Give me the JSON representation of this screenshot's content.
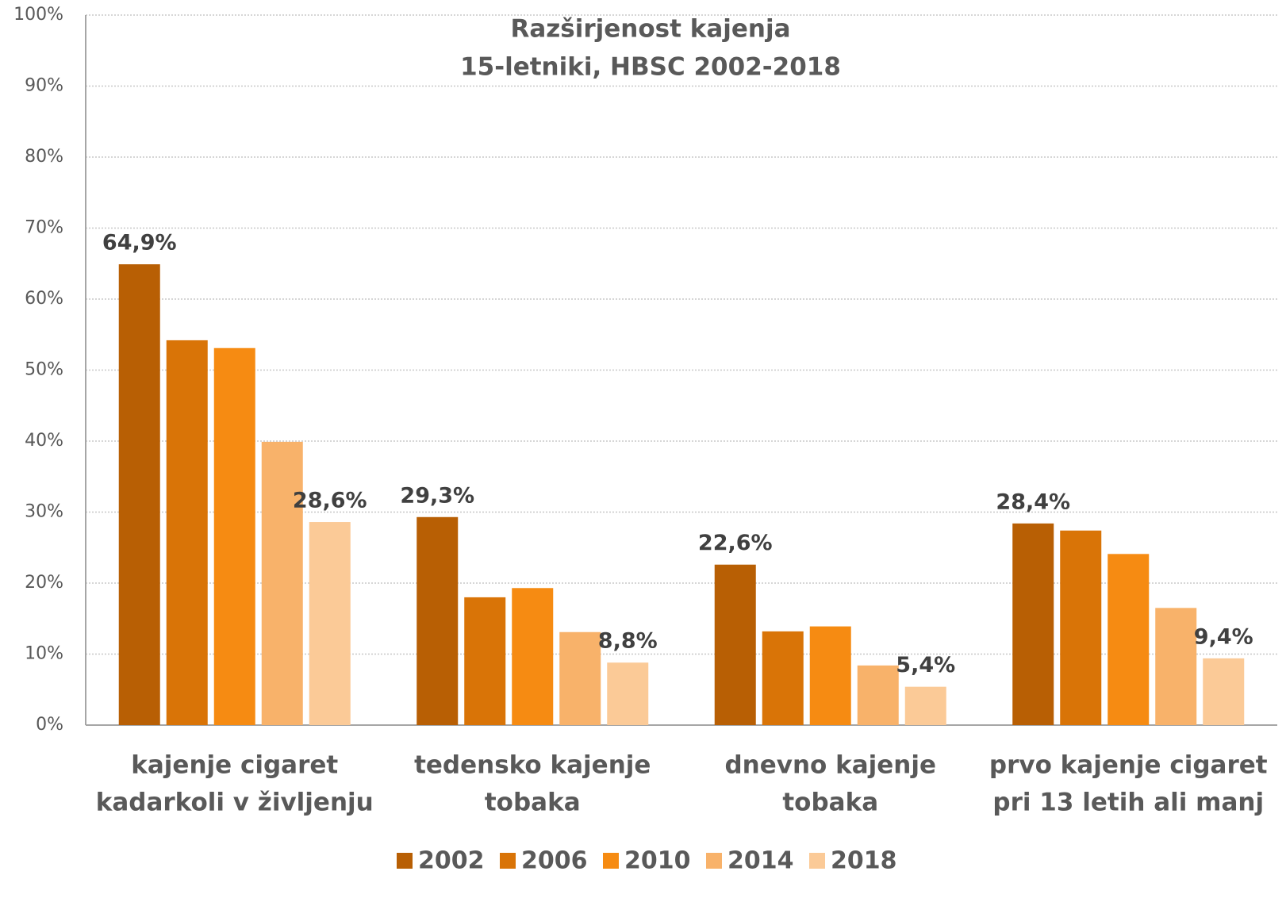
{
  "chart_data": {
    "type": "bar",
    "title": "Razširjenost kajenja",
    "subtitle": "15-letniki, HBSC 2002-2018",
    "categories": [
      [
        "kajenje cigaret",
        "kadarkoli v življenju"
      ],
      [
        "tedensko kajenje",
        "tobaka"
      ],
      [
        "dnevno kajenje",
        "tobaka"
      ],
      [
        "prvo kajenje cigaret",
        "pri 13 letih ali manj"
      ]
    ],
    "series": [
      {
        "name": "2002",
        "color": "#b85f04",
        "values": [
          64.9,
          29.3,
          22.6,
          28.4
        ],
        "value_labels": [
          "64,9%",
          "29,3%",
          "22,6%",
          "28,4%"
        ]
      },
      {
        "name": "2006",
        "color": "#d97407",
        "values": [
          54.2,
          18.0,
          13.2,
          27.4
        ]
      },
      {
        "name": "2010",
        "color": "#f68b12",
        "values": [
          53.1,
          19.3,
          13.9,
          24.1
        ]
      },
      {
        "name": "2014",
        "color": "#f8b26a",
        "values": [
          39.9,
          13.1,
          8.4,
          16.5
        ]
      },
      {
        "name": "2018",
        "color": "#fbca97",
        "values": [
          28.6,
          8.8,
          5.4,
          9.4
        ],
        "value_labels": [
          "28,6%",
          "8,8%",
          "5,4%",
          "9,4%"
        ]
      }
    ],
    "ylim": [
      0,
      100
    ],
    "yticks": [
      {
        "value": 0,
        "label": "0%"
      },
      {
        "value": 10,
        "label": "10%"
      },
      {
        "value": 20,
        "label": "20%"
      },
      {
        "value": 30,
        "label": "30%"
      },
      {
        "value": 40,
        "label": "40%"
      },
      {
        "value": 50,
        "label": "50%"
      },
      {
        "value": 60,
        "label": "60%"
      },
      {
        "value": 70,
        "label": "70%"
      },
      {
        "value": 80,
        "label": "80%"
      },
      {
        "value": 90,
        "label": "90%"
      },
      {
        "value": 100,
        "label": "100%"
      }
    ],
    "grid": true,
    "legend": "bottom"
  }
}
